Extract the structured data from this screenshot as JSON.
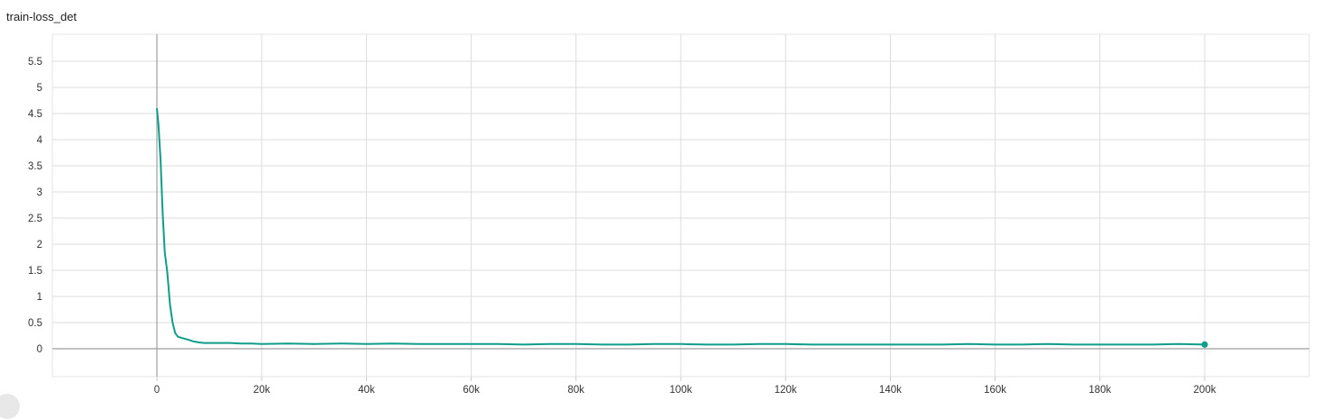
{
  "chart_data": {
    "type": "line",
    "title": "train-loss_det",
    "xlabel": "",
    "ylabel": "",
    "xlim": [
      -20000,
      220000
    ],
    "ylim": [
      -0.5,
      6.0
    ],
    "x_ticks": [
      0,
      20000,
      40000,
      60000,
      80000,
      100000,
      120000,
      140000,
      160000,
      180000,
      200000
    ],
    "x_tick_labels": [
      "0",
      "20k",
      "40k",
      "60k",
      "80k",
      "100k",
      "120k",
      "140k",
      "160k",
      "180k",
      "200k"
    ],
    "y_ticks": [
      0,
      0.5,
      1,
      1.5,
      2,
      2.5,
      3,
      3.5,
      4,
      4.5,
      5,
      5.5
    ],
    "y_tick_labels": [
      "0",
      "0.5",
      "1",
      "1.5",
      "2",
      "2.5",
      "3",
      "3.5",
      "4",
      "4.5",
      "5",
      "5.5"
    ],
    "grid": true,
    "series": [
      {
        "color": "#0f9d8a",
        "x": [
          0,
          300,
          700,
          1100,
          1500,
          2000,
          2500,
          3000,
          3500,
          4000,
          5000,
          6000,
          7000,
          8000,
          9000,
          10000,
          12000,
          14000,
          16000,
          18000,
          20000,
          25000,
          30000,
          35000,
          40000,
          45000,
          50000,
          55000,
          60000,
          65000,
          70000,
          75000,
          80000,
          85000,
          90000,
          95000,
          100000,
          105000,
          110000,
          115000,
          120000,
          125000,
          130000,
          135000,
          140000,
          145000,
          150000,
          155000,
          160000,
          165000,
          170000,
          175000,
          180000,
          185000,
          190000,
          195000,
          200000
        ],
        "y": [
          4.6,
          4.3,
          3.6,
          2.6,
          1.85,
          1.45,
          0.85,
          0.5,
          0.3,
          0.23,
          0.2,
          0.17,
          0.14,
          0.12,
          0.11,
          0.11,
          0.11,
          0.11,
          0.1,
          0.1,
          0.09,
          0.1,
          0.09,
          0.1,
          0.09,
          0.1,
          0.09,
          0.09,
          0.09,
          0.09,
          0.08,
          0.09,
          0.09,
          0.08,
          0.08,
          0.09,
          0.09,
          0.08,
          0.08,
          0.09,
          0.09,
          0.08,
          0.08,
          0.08,
          0.08,
          0.08,
          0.08,
          0.09,
          0.08,
          0.08,
          0.09,
          0.08,
          0.08,
          0.08,
          0.08,
          0.09,
          0.08
        ]
      }
    ]
  }
}
